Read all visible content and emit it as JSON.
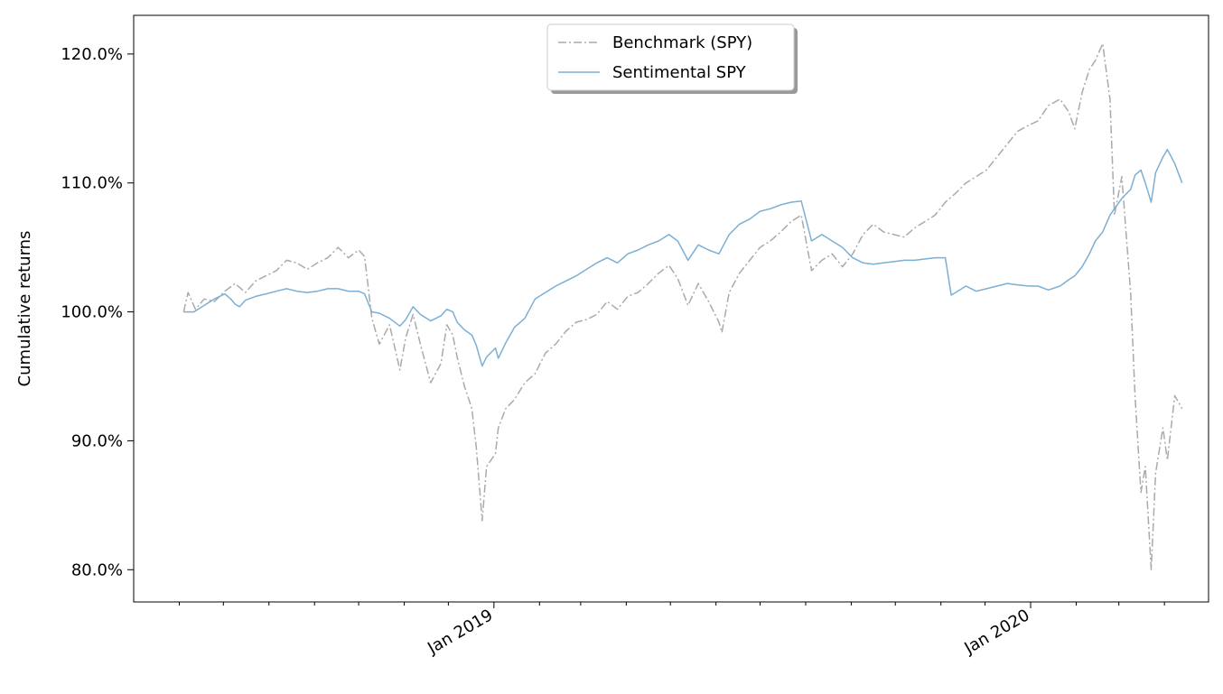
{
  "chart_data": {
    "type": "line",
    "title": "",
    "xlabel": "",
    "ylabel": "Cumulative returns",
    "x_range": [
      "2018-05-01",
      "2020-05-01"
    ],
    "ylim": [
      77.5,
      123
    ],
    "y_ticks": [
      80,
      90,
      100,
      110,
      120
    ],
    "y_tick_format": "percent_1dp",
    "x_major_ticks": [
      {
        "date": "2019-01-01",
        "label": "Jan 2019"
      },
      {
        "date": "2020-01-01",
        "label": "Jan 2020"
      }
    ],
    "x_minor_ticks": [
      "2018-06-01",
      "2018-07-01",
      "2018-08-01",
      "2018-09-01",
      "2018-10-01",
      "2018-11-01",
      "2018-12-01",
      "2019-02-01",
      "2019-03-01",
      "2019-04-01",
      "2019-05-01",
      "2019-06-01",
      "2019-07-01",
      "2019-08-01",
      "2019-09-01",
      "2019-10-01",
      "2019-11-01",
      "2019-12-01",
      "2020-02-01",
      "2020-03-01",
      "2020-04-01"
    ],
    "grid": false,
    "legend": {
      "position": "upper-center",
      "shadow": true
    },
    "series": [
      {
        "name": "Benchmark (SPY)",
        "color": "#aaaaaa",
        "style": "dashdot",
        "points": [
          [
            "2018-06-04",
            100.0
          ],
          [
            "2018-06-07",
            101.5
          ],
          [
            "2018-06-12",
            100.2
          ],
          [
            "2018-06-18",
            101.0
          ],
          [
            "2018-06-25",
            100.8
          ],
          [
            "2018-07-02",
            101.6
          ],
          [
            "2018-07-09",
            102.2
          ],
          [
            "2018-07-16",
            101.5
          ],
          [
            "2018-07-23",
            102.4
          ],
          [
            "2018-07-30",
            102.8
          ],
          [
            "2018-08-06",
            103.2
          ],
          [
            "2018-08-13",
            104.0
          ],
          [
            "2018-08-20",
            103.8
          ],
          [
            "2018-08-27",
            103.3
          ],
          [
            "2018-09-03",
            103.8
          ],
          [
            "2018-09-10",
            104.2
          ],
          [
            "2018-09-17",
            105.0
          ],
          [
            "2018-09-24",
            104.2
          ],
          [
            "2018-10-01",
            104.8
          ],
          [
            "2018-10-05",
            104.3
          ],
          [
            "2018-10-10",
            99.5
          ],
          [
            "2018-10-15",
            97.5
          ],
          [
            "2018-10-22",
            99.0
          ],
          [
            "2018-10-29",
            95.5
          ],
          [
            "2018-11-02",
            98.0
          ],
          [
            "2018-11-07",
            99.8
          ],
          [
            "2018-11-12",
            97.5
          ],
          [
            "2018-11-19",
            94.5
          ],
          [
            "2018-11-26",
            96.0
          ],
          [
            "2018-11-30",
            99.0
          ],
          [
            "2018-12-04",
            98.2
          ],
          [
            "2018-12-07",
            96.5
          ],
          [
            "2018-12-12",
            94.2
          ],
          [
            "2018-12-17",
            92.5
          ],
          [
            "2018-12-20",
            89.5
          ],
          [
            "2018-12-24",
            83.8
          ],
          [
            "2018-12-27",
            88.0
          ],
          [
            "2019-01-02",
            89.0
          ],
          [
            "2019-01-04",
            91.0
          ],
          [
            "2019-01-09",
            92.5
          ],
          [
            "2019-01-15",
            93.2
          ],
          [
            "2019-01-22",
            94.5
          ],
          [
            "2019-01-29",
            95.2
          ],
          [
            "2019-02-05",
            96.8
          ],
          [
            "2019-02-12",
            97.5
          ],
          [
            "2019-02-19",
            98.5
          ],
          [
            "2019-02-26",
            99.2
          ],
          [
            "2019-03-05",
            99.4
          ],
          [
            "2019-03-12",
            99.8
          ],
          [
            "2019-03-19",
            100.8
          ],
          [
            "2019-03-26",
            100.2
          ],
          [
            "2019-04-02",
            101.2
          ],
          [
            "2019-04-09",
            101.5
          ],
          [
            "2019-04-16",
            102.2
          ],
          [
            "2019-04-23",
            103.0
          ],
          [
            "2019-04-30",
            103.6
          ],
          [
            "2019-05-06",
            102.6
          ],
          [
            "2019-05-13",
            100.5
          ],
          [
            "2019-05-20",
            102.2
          ],
          [
            "2019-05-27",
            100.8
          ],
          [
            "2019-06-03",
            99.2
          ],
          [
            "2019-06-05",
            98.4
          ],
          [
            "2019-06-10",
            101.5
          ],
          [
            "2019-06-17",
            103.0
          ],
          [
            "2019-06-24",
            104.0
          ],
          [
            "2019-07-01",
            105.0
          ],
          [
            "2019-07-08",
            105.5
          ],
          [
            "2019-07-15",
            106.2
          ],
          [
            "2019-07-22",
            107.0
          ],
          [
            "2019-07-29",
            107.5
          ],
          [
            "2019-08-05",
            103.2
          ],
          [
            "2019-08-12",
            104.0
          ],
          [
            "2019-08-19",
            104.5
          ],
          [
            "2019-08-26",
            103.5
          ],
          [
            "2019-09-02",
            104.5
          ],
          [
            "2019-09-09",
            106.0
          ],
          [
            "2019-09-16",
            106.8
          ],
          [
            "2019-09-23",
            106.2
          ],
          [
            "2019-09-30",
            106.0
          ],
          [
            "2019-10-07",
            105.8
          ],
          [
            "2019-10-14",
            106.5
          ],
          [
            "2019-10-21",
            107.0
          ],
          [
            "2019-10-28",
            107.5
          ],
          [
            "2019-11-04",
            108.5
          ],
          [
            "2019-11-11",
            109.2
          ],
          [
            "2019-11-18",
            110.0
          ],
          [
            "2019-11-25",
            110.5
          ],
          [
            "2019-12-02",
            111.0
          ],
          [
            "2019-12-09",
            112.0
          ],
          [
            "2019-12-16",
            113.0
          ],
          [
            "2019-12-23",
            114.0
          ],
          [
            "2019-12-31",
            114.5
          ],
          [
            "2020-01-06",
            114.8
          ],
          [
            "2020-01-13",
            116.0
          ],
          [
            "2020-01-21",
            116.5
          ],
          [
            "2020-01-27",
            115.5
          ],
          [
            "2020-01-31",
            114.2
          ],
          [
            "2020-02-05",
            117.0
          ],
          [
            "2020-02-10",
            118.8
          ],
          [
            "2020-02-14",
            119.5
          ],
          [
            "2020-02-19",
            120.8
          ],
          [
            "2020-02-24",
            116.5
          ],
          [
            "2020-02-27",
            107.5
          ],
          [
            "2020-03-03",
            110.5
          ],
          [
            "2020-03-09",
            101.5
          ],
          [
            "2020-03-12",
            93.5
          ],
          [
            "2020-03-16",
            86.0
          ],
          [
            "2020-03-19",
            88.0
          ],
          [
            "2020-03-23",
            80.0
          ],
          [
            "2020-03-26",
            87.5
          ],
          [
            "2020-03-31",
            91.0
          ],
          [
            "2020-04-03",
            88.5
          ],
          [
            "2020-04-08",
            93.5
          ],
          [
            "2020-04-13",
            92.5
          ]
        ]
      },
      {
        "name": "Sentimental SPY",
        "color": "#7bafd4",
        "style": "solid",
        "points": [
          [
            "2018-06-04",
            100.0
          ],
          [
            "2018-06-11",
            100.0
          ],
          [
            "2018-06-18",
            100.5
          ],
          [
            "2018-06-25",
            101.0
          ],
          [
            "2018-07-02",
            101.4
          ],
          [
            "2018-07-06",
            101.0
          ],
          [
            "2018-07-09",
            100.6
          ],
          [
            "2018-07-12",
            100.4
          ],
          [
            "2018-07-16",
            100.9
          ],
          [
            "2018-07-23",
            101.2
          ],
          [
            "2018-07-30",
            101.4
          ],
          [
            "2018-08-06",
            101.6
          ],
          [
            "2018-08-13",
            101.8
          ],
          [
            "2018-08-20",
            101.6
          ],
          [
            "2018-08-27",
            101.5
          ],
          [
            "2018-09-03",
            101.6
          ],
          [
            "2018-09-10",
            101.8
          ],
          [
            "2018-09-17",
            101.8
          ],
          [
            "2018-09-24",
            101.6
          ],
          [
            "2018-10-01",
            101.6
          ],
          [
            "2018-10-05",
            101.4
          ],
          [
            "2018-10-10",
            100.0
          ],
          [
            "2018-10-15",
            99.9
          ],
          [
            "2018-10-22",
            99.5
          ],
          [
            "2018-10-29",
            98.9
          ],
          [
            "2018-11-02",
            99.4
          ],
          [
            "2018-11-07",
            100.4
          ],
          [
            "2018-11-12",
            99.8
          ],
          [
            "2018-11-19",
            99.3
          ],
          [
            "2018-11-26",
            99.7
          ],
          [
            "2018-11-30",
            100.2
          ],
          [
            "2018-12-04",
            100.0
          ],
          [
            "2018-12-07",
            99.2
          ],
          [
            "2018-12-12",
            98.6
          ],
          [
            "2018-12-17",
            98.2
          ],
          [
            "2018-12-20",
            97.4
          ],
          [
            "2018-12-24",
            95.8
          ],
          [
            "2018-12-27",
            96.5
          ],
          [
            "2019-01-02",
            97.2
          ],
          [
            "2019-01-04",
            96.4
          ],
          [
            "2019-01-09",
            97.6
          ],
          [
            "2019-01-15",
            98.8
          ],
          [
            "2019-01-22",
            99.5
          ],
          [
            "2019-01-29",
            101.0
          ],
          [
            "2019-02-05",
            101.5
          ],
          [
            "2019-02-12",
            102.0
          ],
          [
            "2019-02-19",
            102.4
          ],
          [
            "2019-02-26",
            102.8
          ],
          [
            "2019-03-05",
            103.3
          ],
          [
            "2019-03-12",
            103.8
          ],
          [
            "2019-03-19",
            104.2
          ],
          [
            "2019-03-26",
            103.8
          ],
          [
            "2019-04-02",
            104.5
          ],
          [
            "2019-04-09",
            104.8
          ],
          [
            "2019-04-16",
            105.2
          ],
          [
            "2019-04-23",
            105.5
          ],
          [
            "2019-04-30",
            106.0
          ],
          [
            "2019-05-06",
            105.5
          ],
          [
            "2019-05-13",
            104.0
          ],
          [
            "2019-05-20",
            105.2
          ],
          [
            "2019-05-27",
            104.8
          ],
          [
            "2019-06-03",
            104.5
          ],
          [
            "2019-06-10",
            106.0
          ],
          [
            "2019-06-17",
            106.8
          ],
          [
            "2019-06-24",
            107.2
          ],
          [
            "2019-07-01",
            107.8
          ],
          [
            "2019-07-08",
            108.0
          ],
          [
            "2019-07-15",
            108.3
          ],
          [
            "2019-07-22",
            108.5
          ],
          [
            "2019-07-29",
            108.6
          ],
          [
            "2019-08-05",
            105.5
          ],
          [
            "2019-08-12",
            106.0
          ],
          [
            "2019-08-19",
            105.5
          ],
          [
            "2019-08-26",
            105.0
          ],
          [
            "2019-09-02",
            104.2
          ],
          [
            "2019-09-09",
            103.8
          ],
          [
            "2019-09-16",
            103.7
          ],
          [
            "2019-09-23",
            103.8
          ],
          [
            "2019-09-30",
            103.9
          ],
          [
            "2019-10-07",
            104.0
          ],
          [
            "2019-10-14",
            104.0
          ],
          [
            "2019-10-21",
            104.1
          ],
          [
            "2019-10-28",
            104.2
          ],
          [
            "2019-11-04",
            104.2
          ],
          [
            "2019-11-08",
            101.3
          ],
          [
            "2019-11-11",
            101.5
          ],
          [
            "2019-11-18",
            102.0
          ],
          [
            "2019-11-25",
            101.6
          ],
          [
            "2019-12-02",
            101.8
          ],
          [
            "2019-12-09",
            102.0
          ],
          [
            "2019-12-16",
            102.2
          ],
          [
            "2019-12-23",
            102.1
          ],
          [
            "2019-12-31",
            102.0
          ],
          [
            "2020-01-06",
            102.0
          ],
          [
            "2020-01-13",
            101.7
          ],
          [
            "2020-01-21",
            102.0
          ],
          [
            "2020-01-27",
            102.5
          ],
          [
            "2020-01-31",
            102.8
          ],
          [
            "2020-02-05",
            103.5
          ],
          [
            "2020-02-10",
            104.5
          ],
          [
            "2020-02-14",
            105.5
          ],
          [
            "2020-02-19",
            106.2
          ],
          [
            "2020-02-24",
            107.5
          ],
          [
            "2020-02-27",
            108.0
          ],
          [
            "2020-03-03",
            108.8
          ],
          [
            "2020-03-09",
            109.5
          ],
          [
            "2020-03-12",
            110.6
          ],
          [
            "2020-03-16",
            111.0
          ],
          [
            "2020-03-19",
            110.0
          ],
          [
            "2020-03-23",
            108.5
          ],
          [
            "2020-03-26",
            110.8
          ],
          [
            "2020-03-31",
            112.0
          ],
          [
            "2020-04-03",
            112.6
          ],
          [
            "2020-04-08",
            111.5
          ],
          [
            "2020-04-13",
            110.0
          ]
        ]
      }
    ]
  }
}
